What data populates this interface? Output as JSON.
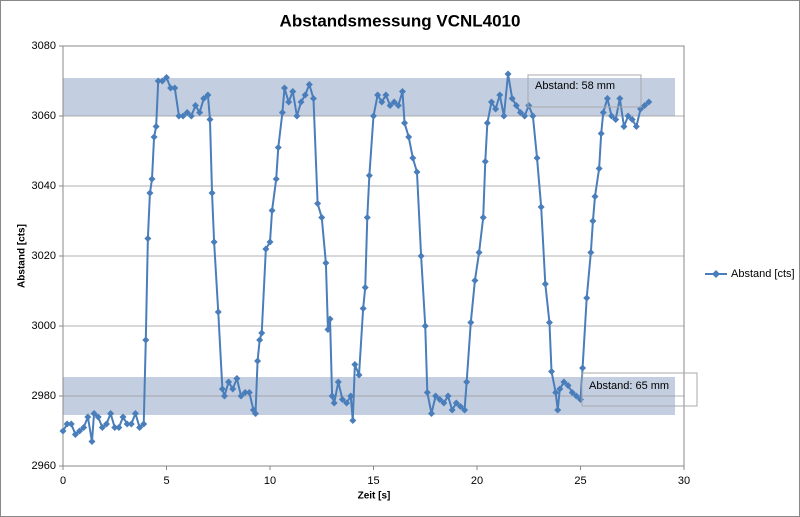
{
  "chart_data": {
    "type": "line",
    "title": "Abstandsmessung VCNL4010",
    "x_label": "Zeit [s]",
    "y_label": "Abstand [cts]",
    "annotations": [
      "Abstand: 58 mm",
      "Abstand: 65 mm"
    ],
    "xlim": [
      0,
      30
    ],
    "xticks": [
      0,
      5,
      10,
      15,
      20,
      25,
      30
    ],
    "ylim": [
      2960,
      3080
    ],
    "yticks": [
      2960,
      2980,
      3000,
      3020,
      3040,
      3060,
      3080
    ],
    "grid": true,
    "legend": "right",
    "x": [
      0,
      0.2,
      0.4,
      0.6,
      0.8,
      1.0,
      1.2,
      1.4,
      1.5,
      1.7,
      1.9,
      2.1,
      2.3,
      2.5,
      2.7,
      2.9,
      3.1,
      3.3,
      3.5,
      3.7,
      3.9,
      4.0,
      4.1,
      4.2,
      4.3,
      4.4,
      4.5,
      4.6,
      4.8,
      5.0,
      5.2,
      5.4,
      5.6,
      5.8,
      6.0,
      6.2,
      6.4,
      6.6,
      6.8,
      7.0,
      7.1,
      7.2,
      7.3,
      7.5,
      7.7,
      7.8,
      8.0,
      8.2,
      8.4,
      8.6,
      8.8,
      9.0,
      9.2,
      9.3,
      9.4,
      9.5,
      9.6,
      9.8,
      10.0,
      10.1,
      10.3,
      10.4,
      10.6,
      10.7,
      10.9,
      11.1,
      11.3,
      11.5,
      11.7,
      11.9,
      12.1,
      12.3,
      12.5,
      12.7,
      12.8,
      12.9,
      13.0,
      13.1,
      13.3,
      13.5,
      13.7,
      13.9,
      14.0,
      14.1,
      14.3,
      14.5,
      14.6,
      14.7,
      14.8,
      15.0,
      15.2,
      15.4,
      15.6,
      15.8,
      16.0,
      16.2,
      16.4,
      16.5,
      16.7,
      16.9,
      17.1,
      17.3,
      17.5,
      17.6,
      17.8,
      18.0,
      18.2,
      18.4,
      18.6,
      18.8,
      19.0,
      19.2,
      19.4,
      19.5,
      19.7,
      19.9,
      20.1,
      20.3,
      20.4,
      20.5,
      20.7,
      20.9,
      21.1,
      21.3,
      21.5,
      21.7,
      21.9,
      22.1,
      22.3,
      22.5,
      22.7,
      22.9,
      23.1,
      23.3,
      23.5,
      23.6,
      23.8,
      23.9,
      24.0,
      24.2,
      24.4,
      24.6,
      24.8,
      25.0,
      25.1,
      25.3,
      25.5,
      25.6,
      25.7,
      25.9,
      26.0,
      26.1,
      26.3,
      26.5,
      26.7,
      26.9,
      27.1,
      27.3,
      27.5,
      27.7,
      27.9,
      28.1,
      28.3
    ],
    "series": [
      {
        "name": "Abstand [cts]",
        "color": "#4a7ebb",
        "values": [
          2970,
          2972,
          2972,
          2969,
          2970,
          2971,
          2974,
          2967,
          2975,
          2974,
          2971,
          2972,
          2975,
          2971,
          2971,
          2974,
          2972,
          2972,
          2975,
          2971,
          2972,
          2996,
          3025,
          3038,
          3042,
          3054,
          3057,
          3070,
          3070,
          3071,
          3068,
          3068,
          3060,
          3060,
          3061,
          3060,
          3063,
          3061,
          3065,
          3066,
          3059,
          3038,
          3024,
          3004,
          2982,
          2980,
          2984,
          2982,
          2985,
          2980,
          2981,
          2981,
          2976,
          2975,
          2990,
          2996,
          2998,
          3022,
          3024,
          3033,
          3042,
          3051,
          3061,
          3068,
          3064,
          3067,
          3060,
          3064,
          3066,
          3069,
          3065,
          3035,
          3031,
          3018,
          2999,
          3002,
          2980,
          2978,
          2984,
          2979,
          2978,
          2980,
          2973,
          2989,
          2986,
          3005,
          3011,
          3031,
          3043,
          3060,
          3066,
          3064,
          3066,
          3063,
          3064,
          3063,
          3067,
          3058,
          3054,
          3048,
          3044,
          3020,
          3000,
          2981,
          2975,
          2980,
          2979,
          2978,
          2980,
          2976,
          2978,
          2977,
          2976,
          2984,
          3001,
          3013,
          3021,
          3031,
          3047,
          3058,
          3064,
          3062,
          3066,
          3060,
          3072,
          3065,
          3063,
          3061,
          3060,
          3063,
          3060,
          3048,
          3034,
          3012,
          3001,
          2987,
          2981,
          2976,
          2982,
          2984,
          2983,
          2981,
          2980,
          2979,
          2988,
          3008,
          3021,
          3030,
          3037,
          3045,
          3055,
          3061,
          3065,
          3060,
          3059,
          3065,
          3057,
          3060,
          3059,
          3057,
          3062,
          3063,
          3064
        ]
      }
    ]
  }
}
